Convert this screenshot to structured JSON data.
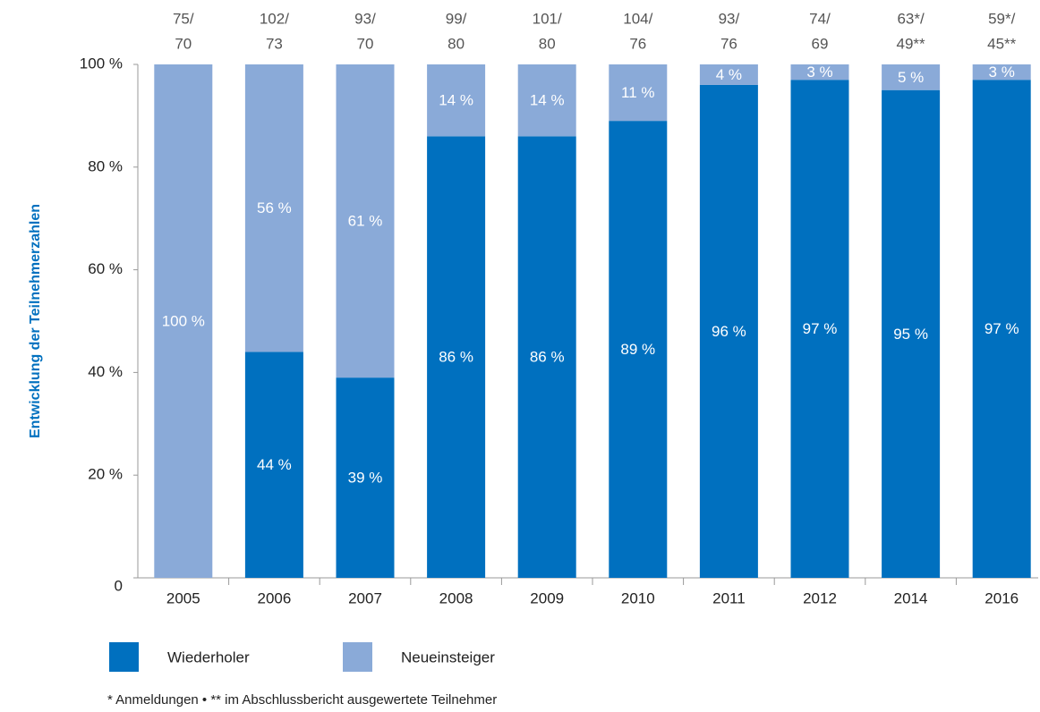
{
  "chart_data": {
    "type": "stacked_bar",
    "y_label": "Entwicklung der Teilnehmerzahlen",
    "categories": [
      "2005",
      "2006",
      "2007",
      "2008",
      "2009",
      "2010",
      "2011",
      "2012",
      "2014",
      "2016"
    ],
    "annotations": [
      [
        "75/",
        "70"
      ],
      [
        "102/",
        "73"
      ],
      [
        "93/",
        "70"
      ],
      [
        "99/",
        "80"
      ],
      [
        "101/",
        "80"
      ],
      [
        "104/",
        "76"
      ],
      [
        "93/",
        "76"
      ],
      [
        "74/",
        "69"
      ],
      [
        "63*/",
        "49**"
      ],
      [
        "59*/",
        "45**"
      ]
    ],
    "series": [
      {
        "name": "Wiederholer",
        "color": "#0070bf",
        "values": [
          0,
          44,
          39,
          86,
          86,
          89,
          96,
          97,
          95,
          97
        ],
        "value_labels": [
          null,
          "44 %",
          "39 %",
          "86 %",
          "86 %",
          "89 %",
          "96 %",
          "97 %",
          "95 %",
          "97 %"
        ]
      },
      {
        "name": "Neueinsteiger",
        "color": "#8aaad8",
        "values": [
          100,
          56,
          61,
          14,
          14,
          11,
          4,
          3,
          5,
          3
        ],
        "value_labels": [
          "100 %",
          "56 %",
          "61 %",
          "14 %",
          "14 %",
          "11 %",
          "4 %",
          "3 %",
          "5 %",
          "3 %"
        ]
      }
    ],
    "ylim": [
      0,
      100
    ],
    "yticks": [
      0,
      {
        "value": 20,
        "label": "20 %"
      },
      {
        "value": 40,
        "label": "40 %"
      },
      {
        "value": 60,
        "label": "60 %"
      },
      {
        "value": 80,
        "label": "80 %"
      },
      {
        "value": 100,
        "label": "100 %"
      }
    ],
    "footnote": "* Anmeldungen • ** im Abschlussbericht ausgewertete Teilnehmer"
  }
}
